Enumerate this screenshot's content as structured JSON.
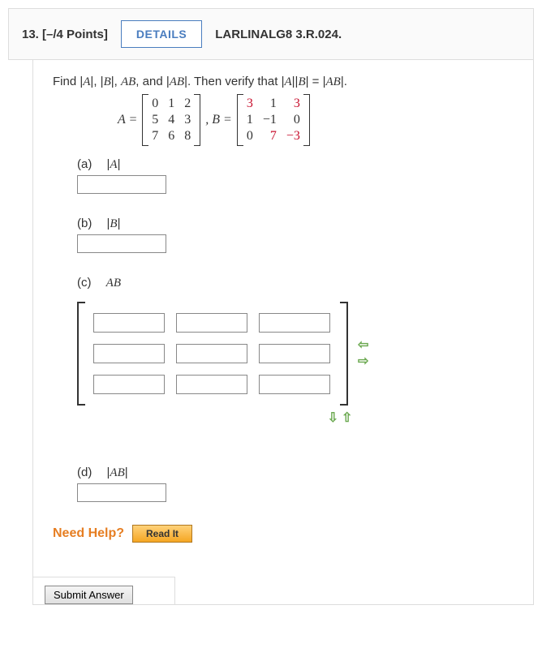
{
  "header": {
    "qnum": "13.",
    "points": "[–/4 Points]",
    "details_label": "DETAILS",
    "book_ref": "LARLINALG8 3.R.024."
  },
  "prompt": {
    "text_prefix": "Find  |",
    "A": "A",
    "B": "B",
    "AB": "AB",
    "mid1": "|,   |",
    "mid2": "|,   ",
    "mid3": ",  and  |",
    "mid4": "|.  Then verify that  |",
    "mid5": "||",
    "mid6": "| = |",
    "end": "|."
  },
  "matrixA": {
    "label": "A =",
    "cols": 3,
    "cells": [
      "0",
      "1",
      "2",
      "5",
      "4",
      "3",
      "7",
      "6",
      "8"
    ],
    "red_flags": [
      false,
      false,
      false,
      false,
      false,
      false,
      false,
      false,
      false
    ]
  },
  "matrixB": {
    "label": ",   B =",
    "cols": 3,
    "cells": [
      "3",
      "1",
      "3",
      "1",
      "−1",
      "0",
      "0",
      "7",
      "−3"
    ],
    "red_flags": [
      true,
      false,
      true,
      false,
      false,
      false,
      false,
      true,
      true
    ]
  },
  "parts": {
    "a": {
      "lp": "(a)",
      "label": "|A|"
    },
    "b": {
      "lp": "(b)",
      "label": "|B|"
    },
    "c": {
      "lp": "(c)",
      "label": "AB"
    },
    "d": {
      "lp": "(d)",
      "label": "|AB|"
    }
  },
  "arrows": {
    "left": "⇦",
    "right": "⇨",
    "down": "⇩",
    "up": "⇧"
  },
  "help": {
    "label": "Need Help?",
    "readit": "Read It"
  },
  "submit": {
    "label": "Submit Answer"
  },
  "style": {
    "red_hex": "#c8102e",
    "green_hex": "#6aa84f",
    "details_border": "#4a7dbf"
  }
}
